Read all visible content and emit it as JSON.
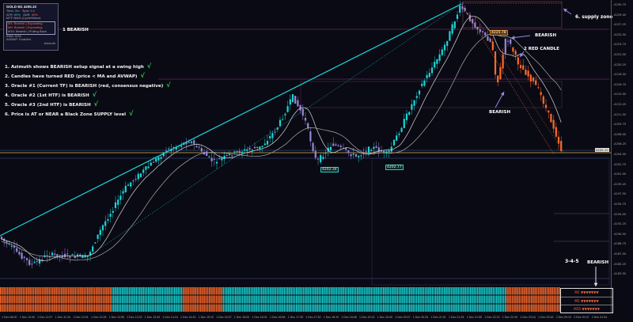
{
  "info_panel": {
    "title": "GOLD M1 4205.10",
    "timeframe": "Time: 2m",
    "spread": "Sprd: 0.1",
    "atr_label": "ATR:",
    "atr_value": "69%",
    "adr_label": "ADR:",
    "adr_value": "40%",
    "mtf_header": "MTF BIAS (Cycle/Wave)",
    "rows": [
      "M1: Bearish | Expanding",
      "M5: Bearish | Expanding",
      "M15: Bearish | Pulling Back"
    ],
    "line_a": "EMA: 9/26",
    "line_b": "AVWAP: Enabled",
    "brand": "Azimuth"
  },
  "annotations": {
    "bearish_1": "1 BEARISH",
    "supply_zone": "6. supply zone",
    "bearish_top": "BEARISH",
    "red_candle": "2  RED CANDLE",
    "bearish_mid": "BEARISH",
    "label_345": "3-4-5",
    "bearish_oracle": "BEARISH"
  },
  "checklist": [
    "1. Azimuth shows BEARISH setup signal at a swing high",
    "2. Candles have turned RED (price < MA and AVWAP)",
    "3. Oracle #1 (Current TF) is BEARISH (red, consensus negative)",
    "4. Oracle #2 (1st HTF) is BEARISH",
    "5. Oracle #3 (2nd HTF) is BEARISH",
    "6. Price is AT or NEAR a Black Zone SUPPLY level"
  ],
  "check_mark": "√",
  "price_labels": {
    "high": "4225.78",
    "low1": "4202.34",
    "low2": "4202.77"
  },
  "current_price": "4205.10",
  "oracles": [
    {
      "label": "M1",
      "arrows": "▼▼▼▼▼▼▼"
    },
    {
      "label": "M5",
      "arrows": "▼▼▼▼▼▼▼"
    },
    {
      "label": "M15",
      "arrows": "▼▼▼▼▼▼▼"
    }
  ],
  "price_axis": [
    "4230.75",
    "4229.00",
    "4227.25",
    "4225.50",
    "4223.75",
    "4222.00",
    "4220.25",
    "4218.50",
    "4216.75",
    "4215.00",
    "4213.25",
    "4211.50",
    "4209.75",
    "4208.00",
    "4206.25",
    "4204.50",
    "4202.75",
    "4201.00",
    "4199.25",
    "4197.50",
    "4195.75",
    "4194.00",
    "4192.25",
    "4190.50",
    "4188.75",
    "4187.00",
    "4185.25",
    "4183.50"
  ],
  "date_axis": [
    "1 Dec 08:00",
    "1 Dec 10:40",
    "1 Dec 11:07",
    "1 Dec 11:34",
    "1 Dec 12:01",
    "1 Dec 12:28",
    "1 Dec 12:55",
    "1 Dec 13:22",
    "1 Dec 13:49",
    "1 Dec 14:16",
    "1 Dec 14:43",
    "1 Dec 15:10",
    "1 Dec 15:37",
    "1 Dec 16:04",
    "1 Dec 16:31",
    "1 Dec 16:58",
    "1 Dec 17:25",
    "1 Dec 17:52",
    "1 Dec 18:19",
    "1 Dec 18:46",
    "1 Dec 19:13",
    "1 Dec 19:40",
    "1 Dec 20:07",
    "1 Dec 20:34",
    "1 Dec 21:01",
    "1 Dec 21:28",
    "1 Dec 21:55",
    "1 Dec 22:22",
    "1 Dec 22:49",
    "1 Dec 23:16",
    "1 Dec 23:43",
    "2 Dec 00:10",
    "2 Dec 00:37",
    "2 Dec 01:04"
  ],
  "colors": {
    "bull": "#19d6d6",
    "bear": "#ff6a2a",
    "neutral": "#9a86d6",
    "price_line": "#e0b050",
    "background": "#0a0a14"
  }
}
